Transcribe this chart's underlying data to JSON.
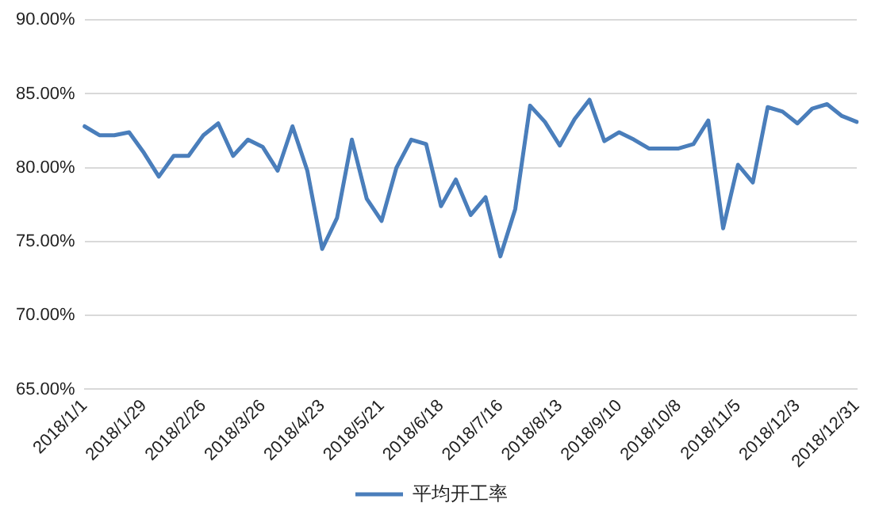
{
  "chart_data": {
    "type": "line",
    "categories": [
      "2018/1/1",
      null,
      null,
      null,
      "2018/1/29",
      null,
      null,
      null,
      "2018/2/26",
      null,
      null,
      null,
      "2018/3/26",
      null,
      null,
      null,
      "2018/4/23",
      null,
      null,
      null,
      "2018/5/21",
      null,
      null,
      null,
      "2018/6/18",
      null,
      null,
      null,
      "2018/7/16",
      null,
      null,
      null,
      "2018/8/13",
      null,
      null,
      null,
      "2018/9/10",
      null,
      null,
      null,
      "2018/10/8",
      null,
      null,
      null,
      "2018/11/5",
      null,
      null,
      null,
      "2018/12/3",
      null,
      null,
      null,
      "2018/12/31"
    ],
    "series": [
      {
        "name": "平均开工率",
        "color": "#4a7ebb",
        "values": [
          82.8,
          82.2,
          82.2,
          82.4,
          81.0,
          79.4,
          80.8,
          80.8,
          82.2,
          83.0,
          80.8,
          81.9,
          81.4,
          79.8,
          82.8,
          79.8,
          74.5,
          76.6,
          81.9,
          77.9,
          76.4,
          80.0,
          81.9,
          81.6,
          77.4,
          79.2,
          76.8,
          78.0,
          74.0,
          77.2,
          84.2,
          83.1,
          81.5,
          83.3,
          84.6,
          81.8,
          82.4,
          81.9,
          81.3,
          81.3,
          81.3,
          81.6,
          83.2,
          75.9,
          80.2,
          79.0,
          84.1,
          83.8,
          83.0,
          84.0,
          84.3,
          83.5,
          83.1
        ]
      }
    ],
    "ylim": [
      65,
      90
    ],
    "yticks": [
      {
        "value": 65,
        "label": "65.00%"
      },
      {
        "value": 70,
        "label": "70.00%"
      },
      {
        "value": 75,
        "label": "75.00%"
      },
      {
        "value": 80,
        "label": "80.00%"
      },
      {
        "value": 85,
        "label": "85.00%"
      },
      {
        "value": 90,
        "label": "90.00%"
      }
    ],
    "grid": "y",
    "legend": "bottom",
    "marker": "none",
    "line_style": "solid"
  }
}
